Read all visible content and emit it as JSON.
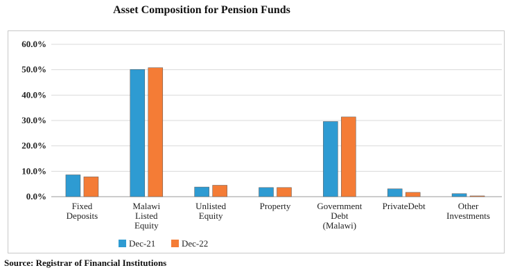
{
  "title": "Asset Composition for Pension Funds",
  "source": "Source: Registrar of Financial Institutions",
  "chart_data": {
    "type": "bar",
    "title": "Asset Composition for Pension Funds",
    "categories": [
      [
        "Fixed",
        "Deposits"
      ],
      [
        "Malawi",
        "Listed",
        "Equity"
      ],
      [
        "Unlisted",
        "Equity"
      ],
      [
        "Property"
      ],
      [
        "Government",
        "Debt",
        "(Malawi)"
      ],
      [
        "PrivateDebt"
      ],
      [
        "Other",
        "Investments"
      ]
    ],
    "series": [
      {
        "name": "Dec-21",
        "color": "#2e9bd2",
        "values": [
          8.6,
          50.1,
          3.8,
          3.6,
          29.6,
          3.1,
          1.2
        ]
      },
      {
        "name": "Dec-22",
        "color": "#f47c36",
        "values": [
          7.8,
          50.8,
          4.5,
          3.6,
          31.4,
          1.7,
          0.3
        ]
      }
    ],
    "yticks": [
      "0.0%",
      "10.0%",
      "20.0%",
      "30.0%",
      "40.0%",
      "50.0%",
      "60.0%"
    ],
    "ylim": [
      0,
      60
    ],
    "grid": true,
    "legend": "bottom-left"
  }
}
